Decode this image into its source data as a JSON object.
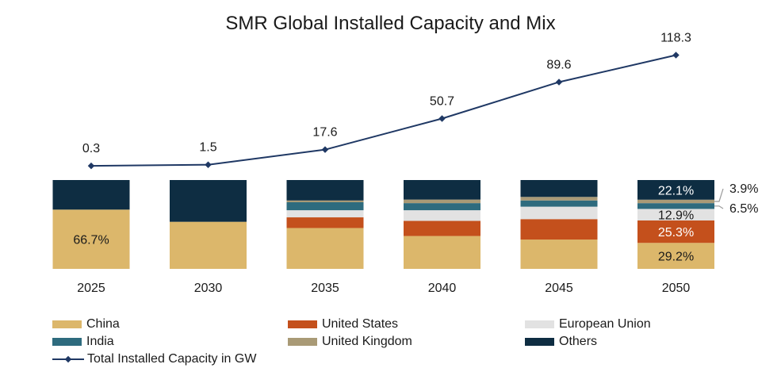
{
  "chart_data": {
    "type": "bar",
    "title": "SMR Global Installed Capacity and Mix",
    "categories": [
      "2025",
      "2030",
      "2035",
      "2040",
      "2045",
      "2050"
    ],
    "stack_mode": "percent",
    "series": [
      {
        "name": "China",
        "color": "#dcb76b",
        "values": [
          66.7,
          53.0,
          46.0,
          37.0,
          33.0,
          29.2
        ]
      },
      {
        "name": "United States",
        "color": "#c4501c",
        "values": [
          0,
          0,
          12.0,
          17.0,
          23.0,
          25.3
        ]
      },
      {
        "name": "European Union",
        "color": "#e2e2e2",
        "values": [
          0,
          0,
          8.0,
          12.0,
          14.0,
          12.9
        ]
      },
      {
        "name": "India",
        "color": "#2e6b7e",
        "values": [
          0,
          0,
          9.0,
          8.0,
          7.0,
          6.5
        ]
      },
      {
        "name": "United Kingdom",
        "color": "#a99a76",
        "values": [
          0,
          0,
          2.0,
          4.0,
          4.0,
          3.9
        ]
      },
      {
        "name": "Others",
        "color": "#0e2d42",
        "values": [
          33.3,
          47.0,
          23.0,
          22.0,
          19.0,
          22.1
        ]
      }
    ],
    "line_series": {
      "name": "Total Installed Capacity in GW",
      "color": "#1f3864",
      "values": [
        0.3,
        1.5,
        17.6,
        50.7,
        89.6,
        118.3
      ]
    },
    "segment_labels": [
      {
        "category": "2025",
        "series": "China",
        "text": "66.7%"
      },
      {
        "category": "2050",
        "series": "Others",
        "text": "22.1%"
      },
      {
        "category": "2050",
        "series": "European Union",
        "text": "12.9%"
      },
      {
        "category": "2050",
        "series": "United States",
        "text": "25.3%"
      },
      {
        "category": "2050",
        "series": "China",
        "text": "29.2%"
      }
    ],
    "callout_labels": [
      {
        "category": "2050",
        "series": "United Kingdom",
        "text": "3.9%"
      },
      {
        "category": "2050",
        "series": "India",
        "text": "6.5%"
      }
    ],
    "legend_position": "bottom",
    "grid": false
  }
}
